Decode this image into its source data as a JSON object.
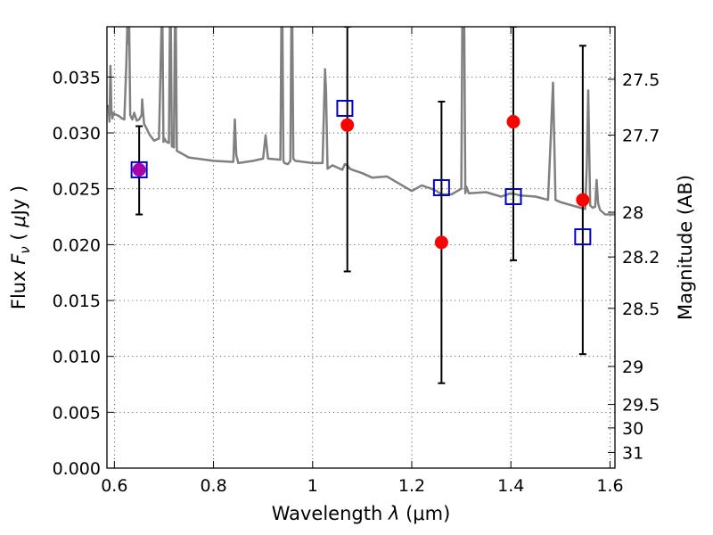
{
  "chart_data": {
    "type": "scatter",
    "x_axis": {
      "label_text": "Wavelength",
      "label_symbol": "λ",
      "label_unit": "(μm)",
      "range": [
        0.585,
        1.61
      ],
      "ticks": [
        0.6,
        0.8,
        1.0,
        1.2,
        1.4,
        1.6
      ],
      "tick_labels": [
        "0.6",
        "0.8",
        "1",
        "1.2",
        "1.4",
        "1.6"
      ]
    },
    "y_axis": {
      "label_text": "Flux",
      "label_symbol": "F",
      "label_subscript": "ν",
      "label_unit_open": "(",
      "label_unit_symbol": "μ",
      "label_unit_rest": "Jy )",
      "range": [
        0.0,
        0.0395
      ],
      "ticks": [
        0.0,
        0.005,
        0.01,
        0.015,
        0.02,
        0.025,
        0.03,
        0.035
      ],
      "tick_labels": [
        "0.000",
        "0.005",
        "0.010",
        "0.015",
        "0.020",
        "0.025",
        "0.030",
        "0.035"
      ]
    },
    "y2_axis": {
      "label": "Magnitude (AB)",
      "ticks": [
        {
          "label": "27.5",
          "flux": 0.0348
        },
        {
          "label": "27.7",
          "flux": 0.0298
        },
        {
          "label": "28",
          "flux": 0.0229
        },
        {
          "label": "28.2",
          "flux": 0.0189
        },
        {
          "label": "28.5",
          "flux": 0.0143
        },
        {
          "label": "29",
          "flux": 0.0091
        },
        {
          "label": "29.5",
          "flux": 0.0057
        },
        {
          "label": "30",
          "flux": 0.0036
        },
        {
          "label": "31",
          "flux": 0.0014
        }
      ]
    },
    "grid": true,
    "series": [
      {
        "kind": "observed",
        "marker": "circle",
        "color": "#ff0000",
        "points": [
          {
            "x": 0.65,
            "y": 0.0267,
            "yerr_low": 0.0227,
            "yerr_high": 0.0306,
            "color": "#aa00aa"
          },
          {
            "x": 1.07,
            "y": 0.0307,
            "yerr_low": 0.0176,
            "yerr_high": 0.0395
          },
          {
            "x": 1.26,
            "y": 0.0202,
            "yerr_low": 0.0076,
            "yerr_high": 0.0328
          },
          {
            "x": 1.405,
            "y": 0.031,
            "yerr_low": 0.0186,
            "yerr_high": 0.0395
          },
          {
            "x": 1.545,
            "y": 0.024,
            "yerr_low": 0.0102,
            "yerr_high": 0.0378
          }
        ]
      },
      {
        "kind": "model_photometry",
        "marker": "open-square",
        "color": "#0000cc",
        "points": [
          {
            "x": 0.65,
            "y": 0.0267
          },
          {
            "x": 1.065,
            "y": 0.0322
          },
          {
            "x": 1.26,
            "y": 0.0251
          },
          {
            "x": 1.405,
            "y": 0.0243
          },
          {
            "x": 1.545,
            "y": 0.0207
          }
        ]
      },
      {
        "kind": "template_spectrum",
        "marker": "line",
        "color": "#808080",
        "x": [
          0.588,
          0.59,
          0.592,
          0.594,
          0.596,
          0.598,
          0.6,
          0.605,
          0.61,
          0.615,
          0.62,
          0.624,
          0.626,
          0.628,
          0.63,
          0.632,
          0.636,
          0.64,
          0.645,
          0.65,
          0.655,
          0.656,
          0.658,
          0.66,
          0.665,
          0.67,
          0.68,
          0.69,
          0.695,
          0.697,
          0.699,
          0.701,
          0.705,
          0.71,
          0.712,
          0.714,
          0.716,
          0.72,
          0.722,
          0.724,
          0.726,
          0.73,
          0.75,
          0.8,
          0.84,
          0.843,
          0.846,
          0.85,
          0.88,
          0.9,
          0.905,
          0.91,
          0.935,
          0.937,
          0.939,
          0.941,
          0.943,
          0.95,
          0.955,
          0.957,
          0.959,
          0.961,
          0.965,
          1.0,
          1.02,
          1.025,
          1.027,
          1.03,
          1.04,
          1.06,
          1.065,
          1.07,
          1.075,
          1.08,
          1.1,
          1.12,
          1.15,
          1.2,
          1.22,
          1.24,
          1.25,
          1.26,
          1.28,
          1.3,
          1.302,
          1.304,
          1.306,
          1.308,
          1.31,
          1.315,
          1.35,
          1.38,
          1.4,
          1.42,
          1.45,
          1.475,
          1.48,
          1.485,
          1.49,
          1.5,
          1.54,
          1.55,
          1.553,
          1.556,
          1.56,
          1.565,
          1.57,
          1.573,
          1.576,
          1.58,
          1.59,
          1.61
        ],
        "y": [
          0.0325,
          0.031,
          0.036,
          0.032,
          0.0313,
          0.0318,
          0.0317,
          0.0316,
          0.0315,
          0.0313,
          0.0312,
          0.036,
          0.0395,
          0.038,
          0.0395,
          0.0316,
          0.0312,
          0.0318,
          0.0311,
          0.0312,
          0.0316,
          0.033,
          0.0318,
          0.0308,
          0.0304,
          0.0299,
          0.0293,
          0.0295,
          0.0395,
          0.0395,
          0.0292,
          0.0295,
          0.0292,
          0.0291,
          0.0395,
          0.0395,
          0.0288,
          0.0287,
          0.0395,
          0.0395,
          0.0284,
          0.0283,
          0.0278,
          0.0275,
          0.0274,
          0.0312,
          0.028,
          0.0273,
          0.0275,
          0.0277,
          0.0298,
          0.0277,
          0.0276,
          0.0395,
          0.0395,
          0.0275,
          0.0273,
          0.0272,
          0.0275,
          0.0395,
          0.0395,
          0.0277,
          0.0275,
          0.0273,
          0.0273,
          0.0357,
          0.0338,
          0.0268,
          0.0271,
          0.0267,
          0.0272,
          0.0271,
          0.0268,
          0.0267,
          0.0264,
          0.026,
          0.0261,
          0.0248,
          0.0253,
          0.025,
          0.0248,
          0.0245,
          0.0245,
          0.025,
          0.0395,
          0.0395,
          0.0395,
          0.0246,
          0.0252,
          0.0246,
          0.0247,
          0.0243,
          0.0246,
          0.0244,
          0.0243,
          0.024,
          0.0291,
          0.0345,
          0.024,
          0.0238,
          0.0233,
          0.0232,
          0.0268,
          0.0338,
          0.0235,
          0.0233,
          0.0234,
          0.0258,
          0.0237,
          0.0231,
          0.0227,
          0.0227
        ]
      }
    ]
  }
}
